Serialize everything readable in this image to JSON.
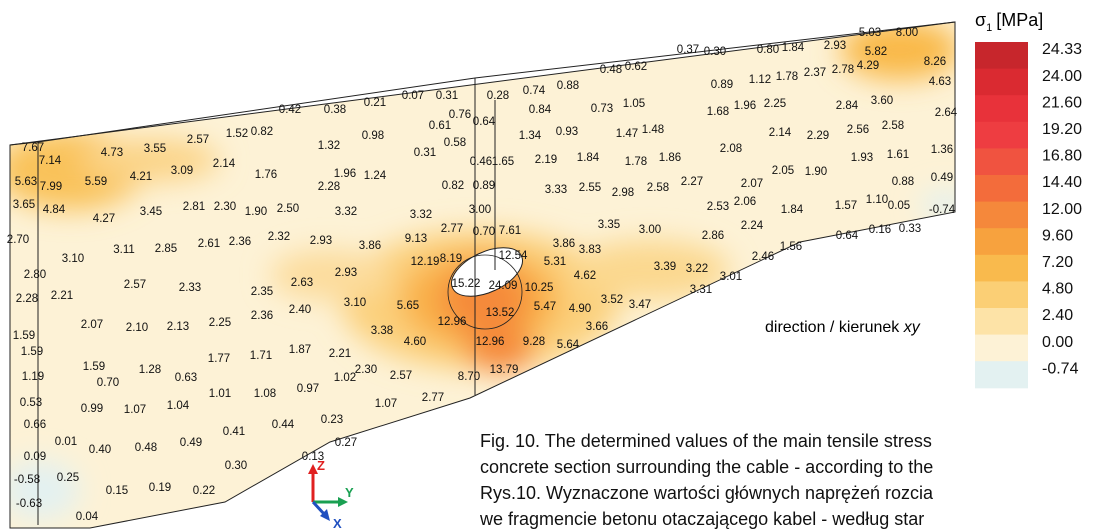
{
  "legend": {
    "symbol": "σ",
    "subscript": "1",
    "unit": "[MPa]",
    "values": [
      "24.33",
      "24.00",
      "21.60",
      "19.20",
      "16.80",
      "14.40",
      "12.00",
      "9.60",
      "7.20",
      "4.80",
      "2.40",
      "0.00",
      "-0.74"
    ],
    "colors": [
      "#c7262c",
      "#da2a31",
      "#e8323a",
      "#ee3d41",
      "#f05340",
      "#f36c3b",
      "#f5883b",
      "#f7a23e",
      "#f9ba4d",
      "#fbcf75",
      "#fde3a7",
      "#fdf2d6",
      "#e3f1f1"
    ]
  },
  "plot_labels": [
    "0.37",
    "0.30",
    "0.80",
    "1.84",
    "2.93",
    "5.03",
    "8.00",
    "5.82",
    "8.26",
    "4.63",
    "2.64",
    "1.36",
    "0.49",
    "-0.74",
    "0.48",
    "0.62",
    "0.89",
    "1.12",
    "1.78",
    "2.37",
    "2.78",
    "4.29",
    "0.28",
    "0.74",
    "0.88",
    "0.42",
    "0.38",
    "0.21",
    "0.07",
    "0.31",
    "0.84",
    "0.73",
    "1.05",
    "1.68",
    "1.96",
    "2.25",
    "2.84",
    "3.60",
    "0.76",
    "0.64",
    "0.61",
    "0.98",
    "0.58",
    "7.67",
    "7.14",
    "4.73",
    "3.55",
    "2.57",
    "1.52",
    "0.82",
    "1.32",
    "0.31",
    "1.34",
    "0.93",
    "1.47",
    "1.48",
    "2.14",
    "2.29",
    "2.56",
    "2.58",
    "0.46",
    "1.65",
    "2.19",
    "1.84",
    "1.78",
    "1.86",
    "2.08",
    "2.05",
    "1.90",
    "1.93",
    "1.61",
    "5.63",
    "7.99",
    "5.59",
    "4.21",
    "3.09",
    "2.14",
    "1.76",
    "2.28",
    "1.96",
    "1.24",
    "0.82",
    "0.89",
    "3.33",
    "2.55",
    "2.98",
    "2.58",
    "2.27",
    "2.07",
    "0.88",
    "3.65",
    "4.84",
    "4.27",
    "3.45",
    "2.81",
    "2.30",
    "1.90",
    "2.50",
    "3.32",
    "3.32",
    "3.00",
    "2.53",
    "2.06",
    "1.84",
    "1.57",
    "1.10",
    "0.05",
    "2.70",
    "3.86",
    "3.35",
    "3.00",
    "2.86",
    "2.24",
    "0.64",
    "0.16",
    "0.33",
    "2.77",
    "0.70",
    "7.61",
    "3.10",
    "3.11",
    "2.85",
    "2.61",
    "2.36",
    "2.32",
    "2.93",
    "3.86",
    "9.13",
    "12.19",
    "8.19",
    "12.54",
    "5.31",
    "3.83",
    "3.39",
    "3.22",
    "2.46",
    "1.56",
    "2.80",
    "2.57",
    "2.33",
    "2.35",
    "2.63",
    "2.93",
    "4.62",
    "3.01",
    "2.28",
    "2.21",
    "15.22",
    "24.09",
    "10.25",
    "3.31",
    "3.10",
    "2.40",
    "5.65",
    "2.36",
    "2.25",
    "2.13",
    "2.10",
    "2.07",
    "5.47",
    "4.90",
    "3.52",
    "3.47",
    "12.96",
    "13.52",
    "3.66",
    "3.38",
    "1.59",
    "4.60",
    "12.96",
    "9.28",
    "5.64",
    "1.59",
    "2.21",
    "1.87",
    "1.71",
    "1.77",
    "1.59",
    "1.28",
    "0.63",
    "2.30",
    "2.57",
    "1.02",
    "8.70",
    "13.79",
    "1.19",
    "0.70",
    "1.01",
    "1.08",
    "0.97",
    "2.77",
    "1.07",
    "0.53",
    "0.99",
    "1.07",
    "1.04",
    "0.66",
    "0.41",
    "0.44",
    "0.23",
    "0.01",
    "0.40",
    "0.48",
    "0.49",
    "0.27",
    "0.09",
    "0.13",
    "0.30",
    "-0.58",
    "0.25",
    "0.15",
    "0.19",
    "0.22",
    "-0.63",
    "0.04"
  ],
  "direction": "direction / kierunek ",
  "direction_axes": "xy",
  "axes": {
    "z": "Z",
    "y": "Y",
    "x": "X"
  },
  "caption": [
    "Fig. 10. The determined values of the main tensile stress",
    "concrete section surrounding the cable - according to the",
    "Rys.10. Wyznaczone wartości głównych naprężeń rozcia",
    "we fragmencie betonu otaczającego kabel - według star"
  ]
}
